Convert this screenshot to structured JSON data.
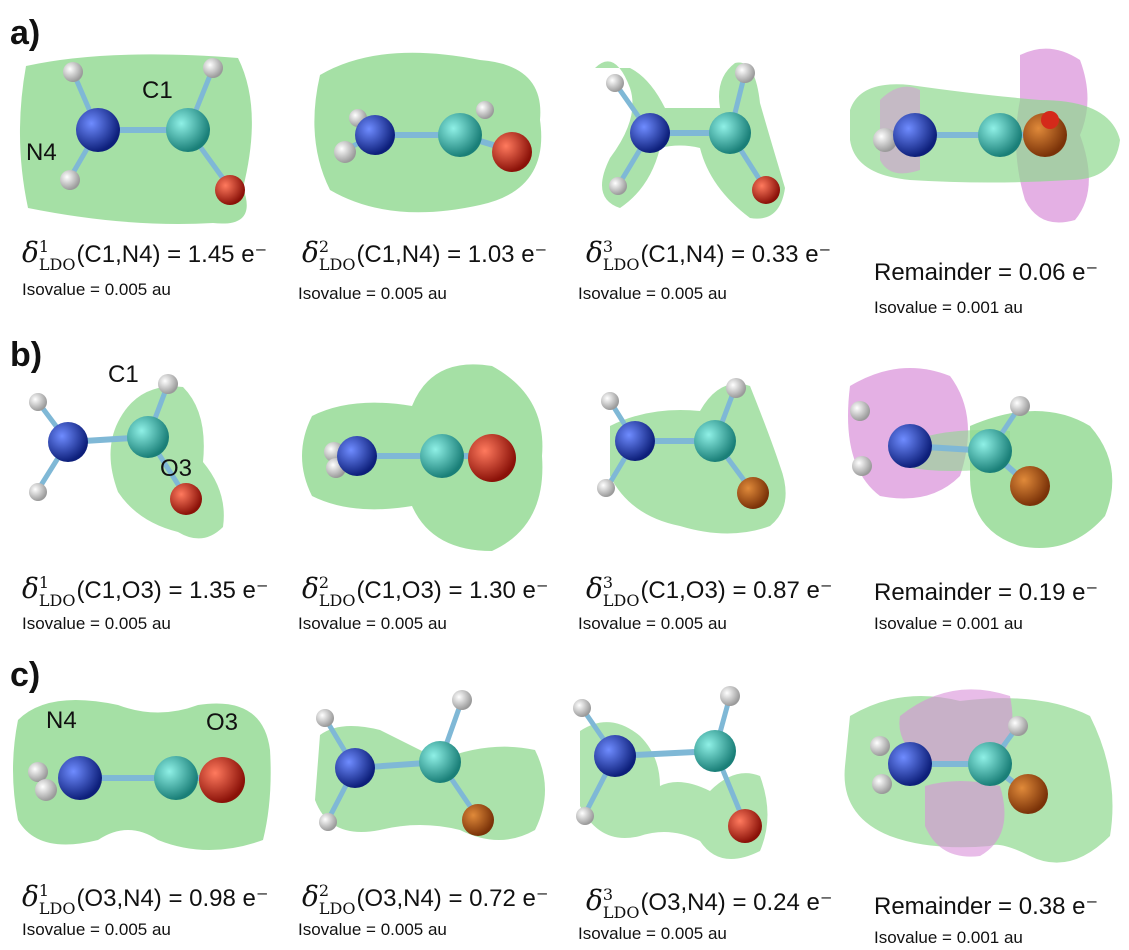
{
  "rows": [
    {
      "label": "a)",
      "atom_labels": [
        "N4",
        "C1"
      ],
      "captions": [
        {
          "sup": "1",
          "sub": "LDO",
          "pair": "(C1,N4)",
          "value": "= 1.45 e⁻",
          "iso": "Isovalue = 0.005 au"
        },
        {
          "sup": "2",
          "sub": "LDO",
          "pair": "(C1,N4)",
          "value": "= 1.03 e⁻",
          "iso": "Isovalue = 0.005 au"
        },
        {
          "sup": "3",
          "sub": "LDO",
          "pair": "(C1,N4)",
          "value": "= 0.33 e⁻",
          "iso": "Isovalue = 0.005 au"
        }
      ],
      "remainder": {
        "text": "Remainder = 0.06 e⁻",
        "iso": "Isovalue = 0.001 au"
      }
    },
    {
      "label": "b)",
      "atom_labels": [
        "C1",
        "O3"
      ],
      "captions": [
        {
          "sup": "1",
          "sub": "LDO",
          "pair": "(C1,O3)",
          "value": "= 1.35 e⁻",
          "iso": "Isovalue = 0.005 au"
        },
        {
          "sup": "2",
          "sub": "LDO",
          "pair": "(C1,O3)",
          "value": "= 1.30 e⁻",
          "iso": "Isovalue = 0.005 au"
        },
        {
          "sup": "3",
          "sub": "LDO",
          "pair": "(C1,O3)",
          "value": "= 0.87 e⁻",
          "iso": "Isovalue = 0.005 au"
        }
      ],
      "remainder": {
        "text": "Remainder = 0.19 e⁻",
        "iso": "Isovalue = 0.001 au"
      }
    },
    {
      "label": "c)",
      "atom_labels": [
        "N4",
        "O3"
      ],
      "captions": [
        {
          "sup": "1",
          "sub": "LDO",
          "pair": "(O3,N4)",
          "value": "= 0.98 e⁻",
          "iso": "Isovalue = 0.005 au"
        },
        {
          "sup": "2",
          "sub": "LDO",
          "pair": "(O3,N4)",
          "value": "= 0.72 e⁻",
          "iso": "Isovalue = 0.005 au"
        },
        {
          "sup": "3",
          "sub": "LDO",
          "pair": "(O3,N4)",
          "value": "= 0.24 e⁻",
          "iso": "Isovalue = 0.005 au"
        }
      ],
      "remainder": {
        "text": "Remainder = 0.38 e⁻",
        "iso": "Isovalue = 0.001 au"
      }
    }
  ],
  "colors": {
    "isosurface_positive": "#8fd88f",
    "isosurface_negative": "#d98fd9",
    "nitrogen": "#1f3fb5",
    "carbon": "#3fb7b0",
    "oxygen": "#d42a1a",
    "hydrogen": "#f2f2f2",
    "bond": "#7fb8d6"
  }
}
